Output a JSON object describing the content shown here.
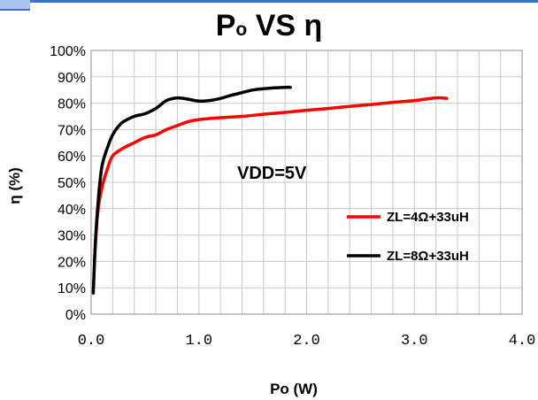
{
  "chart_data": {
    "type": "line",
    "title": "Po VS η",
    "title_main": "P",
    "title_sub": "o",
    "title_rest": " VS η",
    "xlabel": "Po (W)",
    "ylabel": "η (%)",
    "xlim": [
      0,
      4
    ],
    "ylim": [
      0,
      100
    ],
    "x_ticks": [
      "0.0",
      "1.0",
      "2.0",
      "3.0",
      "4.0"
    ],
    "x_tick_values": [
      0,
      1,
      2,
      3,
      4
    ],
    "y_ticks": [
      "0%",
      "10%",
      "20%",
      "30%",
      "40%",
      "50%",
      "60%",
      "70%",
      "80%",
      "90%",
      "100%"
    ],
    "y_tick_values": [
      0,
      10,
      20,
      30,
      40,
      50,
      60,
      70,
      80,
      90,
      100
    ],
    "grid_x_step": 0.2,
    "grid_y_step": 10,
    "grid": true,
    "legend_position": "right",
    "annotations": [
      "VDD=5V"
    ],
    "series": [
      {
        "name": "ZL=4Ω+33uH",
        "color": "#ff0000",
        "x": [
          0.03,
          0.06,
          0.1,
          0.15,
          0.2,
          0.3,
          0.4,
          0.5,
          0.6,
          0.7,
          0.8,
          0.9,
          1.0,
          1.2,
          1.4,
          1.6,
          1.8,
          2.0,
          2.2,
          2.4,
          2.6,
          2.8,
          3.0,
          3.2,
          3.3
        ],
        "y": [
          20,
          38,
          48,
          55,
          60,
          63,
          65,
          67,
          68,
          70,
          71.5,
          73,
          73.8,
          74.5,
          75,
          75.8,
          76.5,
          77.3,
          78,
          78.8,
          79.5,
          80.3,
          81,
          82,
          81.8
        ]
      },
      {
        "name": "ZL=8Ω+33uH",
        "color": "#000000",
        "x": [
          0.02,
          0.04,
          0.07,
          0.1,
          0.15,
          0.2,
          0.25,
          0.3,
          0.4,
          0.5,
          0.6,
          0.7,
          0.8,
          0.9,
          1.0,
          1.1,
          1.2,
          1.3,
          1.4,
          1.5,
          1.6,
          1.7,
          1.8,
          1.85
        ],
        "y": [
          8,
          28,
          45,
          56,
          63,
          68,
          71,
          73,
          75,
          76,
          78,
          81,
          82,
          81.5,
          80.8,
          81,
          81.8,
          83,
          84,
          85,
          85.5,
          85.8,
          86,
          86
        ]
      }
    ]
  }
}
